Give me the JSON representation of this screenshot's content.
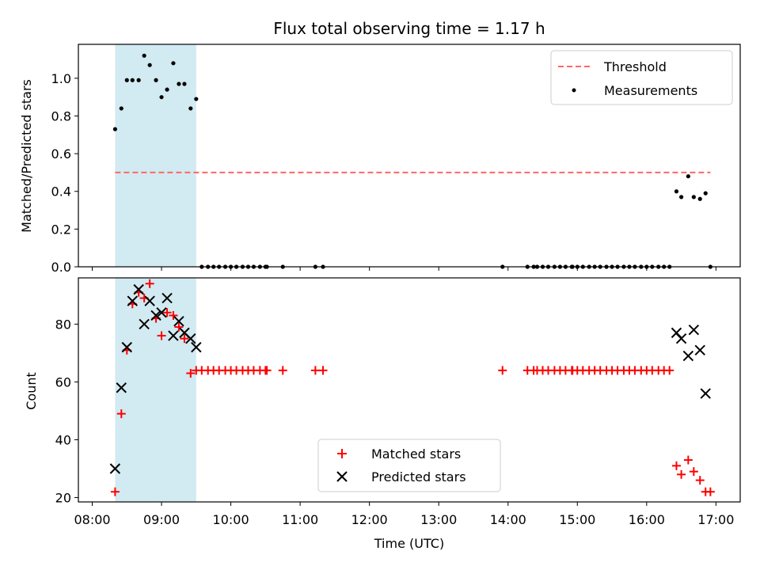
{
  "chart_data": {
    "title": "Flux total observing time = 1.17 h",
    "xlabel": "Time (UTC)",
    "x_tick_labels": [
      "08:00",
      "09:00",
      "10:00",
      "11:00",
      "12:00",
      "13:00",
      "14:00",
      "15:00",
      "16:00",
      "17:00"
    ],
    "x_range_hours": [
      7.8,
      17.35
    ],
    "highlight_band_hours": [
      8.33,
      9.5
    ],
    "colors": {
      "band": "#add8e6",
      "threshold": "#ff6666",
      "matched": "#ff0000",
      "predicted": "#000000",
      "measurement": "#000000"
    },
    "top": {
      "type": "scatter",
      "ylabel": "Matched/Predicted stars",
      "ylim": [
        0,
        1.18
      ],
      "y_ticks": [
        0.0,
        0.2,
        0.4,
        0.6,
        0.8,
        1.0
      ],
      "y_tick_labels": [
        "0.0",
        "0.2",
        "0.4",
        "0.6",
        "0.8",
        "1.0"
      ],
      "threshold": {
        "name": "Threshold",
        "value": 0.5,
        "x_start": 8.33,
        "x_end": 16.92
      },
      "legend": {
        "placement": "top-right",
        "entries": [
          "Threshold",
          "Measurements"
        ]
      },
      "measurements": {
        "name": "Measurements",
        "x": [
          8.33,
          8.42,
          8.5,
          8.58,
          8.67,
          8.75,
          8.83,
          8.92,
          9.0,
          9.08,
          9.17,
          9.25,
          9.33,
          9.42,
          9.5,
          9.58,
          9.67,
          9.75,
          9.83,
          9.92,
          10.0,
          10.08,
          10.17,
          10.25,
          10.33,
          10.42,
          10.5,
          10.52,
          10.75,
          11.22,
          11.33,
          13.92,
          14.28,
          14.37,
          14.42,
          14.5,
          14.58,
          14.67,
          14.75,
          14.83,
          14.92,
          14.93,
          15.0,
          15.08,
          15.17,
          15.25,
          15.33,
          15.42,
          15.5,
          15.58,
          15.67,
          15.75,
          15.83,
          15.92,
          16.0,
          16.08,
          16.17,
          16.25,
          16.33,
          16.43,
          16.5,
          16.6,
          16.68,
          16.77,
          16.85,
          16.92
        ],
        "y": [
          0.73,
          0.84,
          0.99,
          0.99,
          0.99,
          1.12,
          1.07,
          0.99,
          0.9,
          0.94,
          1.08,
          0.97,
          0.97,
          0.84,
          0.89,
          0,
          0,
          0,
          0,
          0,
          0,
          0,
          0,
          0,
          0,
          0,
          0,
          0,
          0,
          0,
          0,
          0,
          0,
          0,
          0,
          0,
          0,
          0,
          0,
          0,
          0,
          0,
          0,
          0,
          0,
          0,
          0,
          0,
          0,
          0,
          0,
          0,
          0,
          0,
          0,
          0,
          0,
          0,
          0,
          0.4,
          0.37,
          0.48,
          0.37,
          0.36,
          0.39,
          0
        ]
      }
    },
    "bottom": {
      "type": "scatter",
      "ylabel": "Count",
      "ylim": [
        18.5,
        96
      ],
      "y_ticks": [
        20,
        40,
        60,
        80
      ],
      "y_tick_labels": [
        "20",
        "40",
        "60",
        "80"
      ],
      "legend": {
        "placement": "lower-center",
        "entries": [
          "Matched stars",
          "Predicted stars"
        ]
      },
      "matched": {
        "name": "Matched stars",
        "x": [
          8.33,
          8.42,
          8.5,
          8.58,
          8.67,
          8.75,
          8.83,
          8.92,
          9.0,
          9.08,
          9.17,
          9.25,
          9.33,
          9.42,
          9.5,
          9.58,
          9.67,
          9.75,
          9.83,
          9.92,
          10.0,
          10.08,
          10.17,
          10.25,
          10.33,
          10.42,
          10.5,
          10.52,
          10.75,
          11.22,
          11.33,
          13.92,
          14.28,
          14.37,
          14.42,
          14.5,
          14.58,
          14.67,
          14.75,
          14.83,
          14.92,
          14.93,
          15.0,
          15.08,
          15.17,
          15.25,
          15.33,
          15.42,
          15.5,
          15.58,
          15.67,
          15.75,
          15.83,
          15.92,
          16.0,
          16.08,
          16.17,
          16.25,
          16.33,
          16.43,
          16.5,
          16.6,
          16.68,
          16.77,
          16.85,
          16.92
        ],
        "y": [
          22,
          49,
          71,
          87,
          91,
          89,
          94,
          82,
          76,
          84,
          83,
          79,
          75,
          63,
          64,
          64,
          64,
          64,
          64,
          64,
          64,
          64,
          64,
          64,
          64,
          64,
          64,
          64,
          64,
          64,
          64,
          64,
          64,
          64,
          64,
          64,
          64,
          64,
          64,
          64,
          64,
          64,
          64,
          64,
          64,
          64,
          64,
          64,
          64,
          64,
          64,
          64,
          64,
          64,
          64,
          64,
          64,
          64,
          64,
          31,
          28,
          33,
          29,
          26,
          22,
          22
        ]
      },
      "predicted": {
        "name": "Predicted stars",
        "x": [
          8.33,
          8.42,
          8.5,
          8.58,
          8.67,
          8.75,
          8.83,
          8.92,
          9.0,
          9.08,
          9.17,
          9.25,
          9.33,
          9.42,
          9.5,
          16.43,
          16.5,
          16.6,
          16.68,
          16.77,
          16.85
        ],
        "y": [
          30,
          58,
          72,
          88,
          92,
          80,
          88,
          83,
          84,
          89,
          76,
          81,
          77,
          75,
          72,
          77,
          75,
          69,
          78,
          71,
          56
        ]
      }
    }
  }
}
